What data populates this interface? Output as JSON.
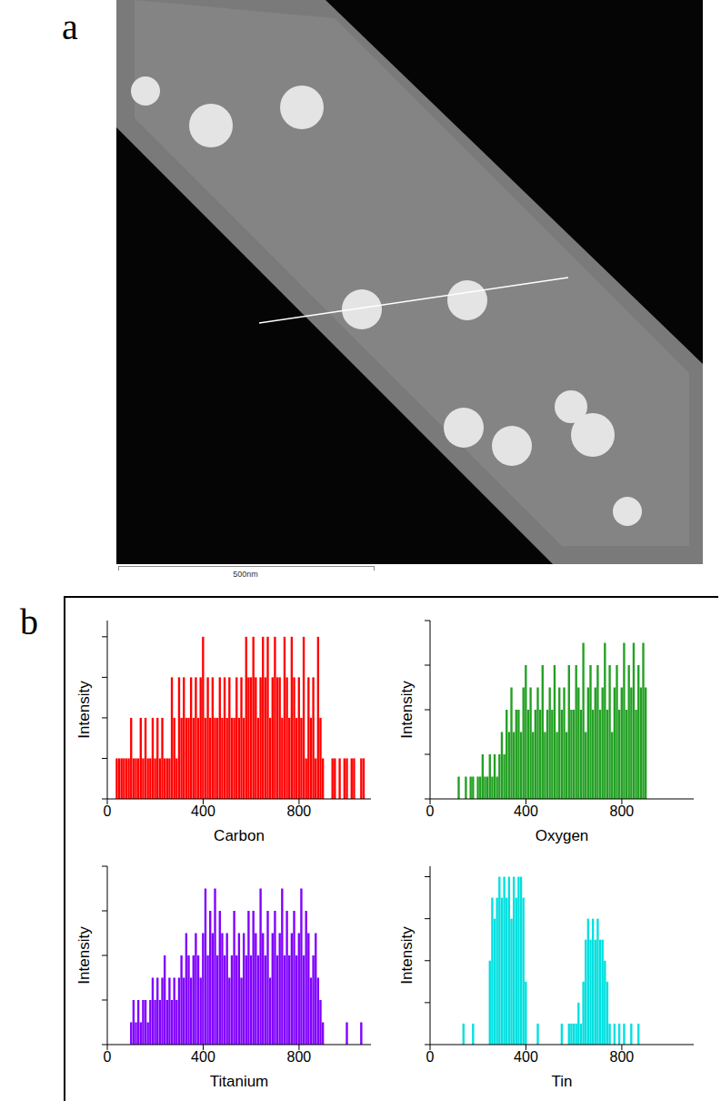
{
  "panel_labels": [
    "a",
    "b"
  ],
  "scale_bar": "500nm",
  "chart_data": [
    {
      "type": "bar",
      "xlabel": "Carbon",
      "ylabel": "Intensity",
      "color": "#ff0000",
      "xlim": [
        0,
        1100
      ],
      "xticks": [
        0,
        400,
        800
      ],
      "ylim": [
        0,
        4.4
      ],
      "yticks": [
        0,
        1,
        2,
        3,
        4
      ],
      "tick_labels": "x",
      "x": [
        40,
        50,
        60,
        70,
        80,
        90,
        100,
        110,
        120,
        130,
        140,
        150,
        160,
        170,
        180,
        190,
        200,
        210,
        220,
        230,
        240,
        250,
        260,
        270,
        280,
        290,
        300,
        310,
        320,
        330,
        340,
        350,
        360,
        370,
        380,
        390,
        400,
        410,
        420,
        430,
        440,
        450,
        460,
        470,
        480,
        490,
        500,
        510,
        520,
        530,
        540,
        550,
        560,
        570,
        580,
        590,
        600,
        610,
        620,
        630,
        640,
        650,
        660,
        670,
        680,
        690,
        700,
        710,
        720,
        730,
        740,
        750,
        760,
        770,
        780,
        790,
        800,
        810,
        820,
        830,
        840,
        850,
        860,
        870,
        880,
        890,
        900,
        910,
        920,
        930,
        940,
        950,
        960,
        970,
        980,
        990,
        1000,
        1010,
        1020,
        1030,
        1040,
        1050,
        1060,
        1070
      ],
      "values": [
        1,
        1,
        1,
        1,
        1,
        1,
        2,
        1,
        1,
        1,
        2,
        1,
        2,
        1,
        1,
        2,
        1,
        2,
        1,
        2,
        1,
        1,
        1,
        3,
        2,
        1,
        3,
        2,
        3,
        2,
        2,
        3,
        2,
        3,
        2,
        3,
        4,
        2,
        3,
        2,
        3,
        2,
        2,
        3,
        2,
        3,
        2,
        3,
        2,
        2,
        3,
        2,
        3,
        2,
        4,
        3,
        3,
        4,
        3,
        2,
        3,
        4,
        3,
        4,
        2,
        3,
        4,
        3,
        3,
        2,
        4,
        3,
        2,
        4,
        3,
        2,
        3,
        2,
        4,
        1,
        3,
        2,
        3,
        1,
        4,
        2,
        1,
        0,
        0,
        0,
        1,
        1,
        0,
        1,
        0,
        1,
        1,
        0,
        1,
        1,
        0,
        0,
        1,
        1
      ]
    },
    {
      "type": "bar",
      "xlabel": "Oxygen",
      "ylabel": "Intensity",
      "color": "#22a022",
      "xlim": [
        0,
        1100
      ],
      "xticks": [
        0,
        400,
        800
      ],
      "ylim": [
        0,
        8
      ],
      "yticks": [
        0,
        2,
        4,
        6,
        8
      ],
      "tick_labels": "x",
      "x": [
        120,
        130,
        140,
        150,
        160,
        170,
        180,
        190,
        200,
        210,
        220,
        230,
        240,
        250,
        260,
        270,
        280,
        290,
        300,
        310,
        320,
        330,
        340,
        350,
        360,
        370,
        380,
        390,
        400,
        410,
        420,
        430,
        440,
        450,
        460,
        470,
        480,
        490,
        500,
        510,
        520,
        530,
        540,
        550,
        560,
        570,
        580,
        590,
        600,
        610,
        620,
        630,
        640,
        650,
        660,
        670,
        680,
        690,
        700,
        710,
        720,
        730,
        740,
        750,
        760,
        770,
        780,
        790,
        800,
        810,
        820,
        830,
        840,
        850,
        860,
        870,
        880,
        890,
        900
      ],
      "values": [
        1,
        0,
        0,
        1,
        0,
        1,
        1,
        0,
        1,
        1,
        2,
        1,
        1,
        2,
        1,
        2,
        1,
        2,
        3,
        2,
        4,
        3,
        5,
        3,
        4,
        4,
        3,
        5,
        6,
        4,
        5,
        3,
        4,
        5,
        4,
        6,
        3,
        4,
        5,
        4,
        6,
        3,
        5,
        4,
        5,
        3,
        6,
        4,
        4,
        6,
        5,
        4,
        7,
        3,
        5,
        6,
        4,
        5,
        6,
        4,
        5,
        7,
        4,
        6,
        3,
        5,
        6,
        4,
        5,
        7,
        4,
        6,
        5,
        7,
        4,
        6,
        5,
        7,
        5
      ]
    },
    {
      "type": "bar",
      "xlabel": "Titanium",
      "ylabel": "Intensity",
      "color": "#8000ff",
      "xlim": [
        0,
        1100
      ],
      "xticks": [
        0,
        400,
        800
      ],
      "ylim": [
        0,
        8
      ],
      "yticks": [
        0,
        2,
        4,
        6,
        8
      ],
      "tick_labels": "x",
      "x": [
        100,
        110,
        120,
        130,
        140,
        150,
        160,
        170,
        180,
        190,
        200,
        210,
        220,
        230,
        240,
        250,
        260,
        270,
        280,
        290,
        300,
        310,
        320,
        330,
        340,
        350,
        360,
        370,
        380,
        390,
        400,
        410,
        420,
        430,
        440,
        450,
        460,
        470,
        480,
        490,
        500,
        510,
        520,
        530,
        540,
        550,
        560,
        570,
        580,
        590,
        600,
        610,
        620,
        630,
        640,
        650,
        660,
        670,
        680,
        690,
        700,
        710,
        720,
        730,
        740,
        750,
        760,
        770,
        780,
        790,
        800,
        810,
        820,
        830,
        840,
        850,
        860,
        870,
        880,
        890,
        900,
        1000,
        1060
      ],
      "values": [
        1,
        2,
        1,
        2,
        1,
        2,
        2,
        1,
        2,
        3,
        2,
        3,
        2,
        3,
        4,
        2,
        3,
        2,
        3,
        2,
        3,
        4,
        3,
        5,
        4,
        3,
        4,
        5,
        4,
        3,
        5,
        7,
        4,
        6,
        5,
        7,
        4,
        6,
        5,
        4,
        5,
        3,
        4,
        6,
        4,
        5,
        3,
        5,
        4,
        6,
        4,
        6,
        5,
        4,
        7,
        5,
        4,
        6,
        3,
        5,
        6,
        4,
        5,
        7,
        4,
        6,
        4,
        5,
        6,
        4,
        5,
        7,
        4,
        6,
        5,
        3,
        4,
        5,
        3,
        2,
        1,
        1,
        1
      ]
    },
    {
      "type": "bar",
      "xlabel": "Tin",
      "ylabel": "Intensity",
      "color": "#00e0e0",
      "xlim": [
        0,
        1100
      ],
      "xticks": [
        0,
        400,
        800
      ],
      "ylim": [
        0,
        8.5
      ],
      "yticks": [
        0,
        2,
        4,
        6,
        8
      ],
      "tick_labels": "x",
      "x": [
        130,
        140,
        150,
        160,
        170,
        180,
        190,
        200,
        210,
        220,
        230,
        240,
        250,
        260,
        270,
        280,
        290,
        300,
        310,
        320,
        330,
        340,
        350,
        360,
        370,
        380,
        390,
        400,
        410,
        420,
        430,
        440,
        450,
        460,
        470,
        480,
        490,
        500,
        510,
        520,
        530,
        540,
        550,
        560,
        570,
        580,
        590,
        600,
        610,
        620,
        630,
        640,
        650,
        660,
        670,
        680,
        690,
        700,
        710,
        720,
        730,
        740,
        750,
        760,
        770,
        780,
        790,
        800,
        810,
        820,
        830,
        840,
        850,
        860,
        870,
        880
      ],
      "values": [
        0,
        1,
        0,
        0,
        0,
        1,
        0,
        0,
        0,
        0,
        0,
        0,
        4,
        7,
        6,
        7,
        8,
        7,
        8,
        7,
        8,
        6,
        8,
        7,
        8,
        8,
        7,
        3,
        0,
        0,
        0,
        0,
        1,
        0,
        0,
        0,
        0,
        0,
        0,
        0,
        0,
        0,
        1,
        0,
        0,
        1,
        1,
        1,
        1,
        2,
        1,
        3,
        5,
        6,
        5,
        6,
        5,
        6,
        5,
        5,
        4,
        3,
        1,
        0,
        1,
        0,
        1,
        0,
        1,
        0,
        0,
        1,
        0,
        0,
        1,
        0
      ]
    }
  ]
}
